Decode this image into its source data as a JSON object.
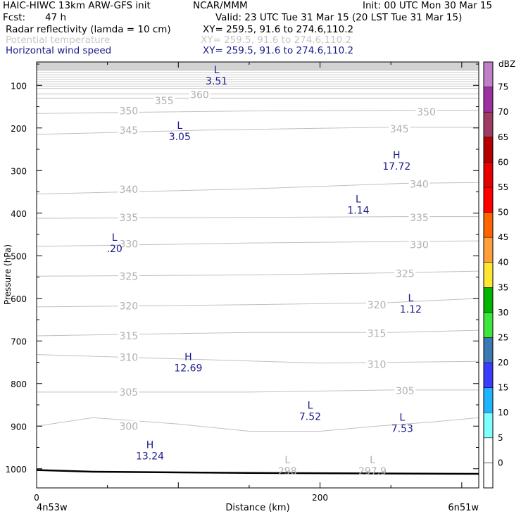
{
  "header": {
    "model": "HAIC-HIWC 13km ARW-GFS init",
    "org": "NCAR/MMM",
    "init": "Init: 00 UTC Mon 30 Mar 15",
    "fcst_label": "Fcst:",
    "fcst_value": "47 h",
    "valid": "Valid: 23 UTC Tue 31 Mar 15 (20 LST Tue 31 Mar 15)",
    "fields": [
      {
        "name": "Radar reflectivity (lamda = 10 cm)",
        "xy": "XY= 259.5, 91.6 to 274.6,110.2",
        "color": "#000000"
      },
      {
        "name": "Potential temperature",
        "xy": "XY= 259.5, 91.6 to 274.6,110.2",
        "color": "#c8c8c8"
      },
      {
        "name": "Horizontal wind speed",
        "xy": "XY= 259.5, 91.6 to 274.6,110.2",
        "color": "#1a1a8c"
      }
    ]
  },
  "chart_data": {
    "type": "cross-section",
    "xlabel": "Distance (km)",
    "ylabel": "Pressure (hPa)",
    "xlim": [
      0,
      312
    ],
    "ylim": [
      1045,
      45
    ],
    "x_ticks": [
      0,
      200
    ],
    "y_ticks": [
      100,
      200,
      300,
      400,
      500,
      600,
      700,
      800,
      900,
      1000
    ],
    "x_end_labels": [
      "4n53w",
      "6n51w"
    ],
    "colorbar": {
      "unit": "dBZ",
      "levels": [
        -5,
        0,
        5,
        10,
        15,
        20,
        25,
        30,
        35,
        40,
        45,
        50,
        55,
        60,
        65,
        70,
        75,
        80
      ],
      "labels": [
        "0",
        "5",
        "10",
        "15",
        "20",
        "25",
        "30",
        "35",
        "40",
        "45",
        "50",
        "55",
        "60",
        "65",
        "70",
        "75"
      ],
      "colors": [
        "#ffffff",
        "#ffffff",
        "#80ffff",
        "#20b4ff",
        "#3c3cff",
        "#3c78b4",
        "#3ce63c",
        "#00b400",
        "#ffe632",
        "#ffa03c",
        "#ff6400",
        "#ff0000",
        "#e60000",
        "#b40000",
        "#a03c64",
        "#9b32a0",
        "#c080c8"
      ]
    },
    "theta_contours": [
      {
        "value": 355,
        "points": [
          [
            0,
            130
          ],
          [
            312,
            130
          ]
        ],
        "labels": [
          [
            90,
            136
          ]
        ]
      },
      {
        "value": 360,
        "points": [
          [
            0,
            120
          ],
          [
            312,
            120
          ]
        ],
        "labels": [
          [
            115,
            122
          ]
        ]
      },
      {
        "value": 350,
        "points": [
          [
            0,
            166
          ],
          [
            150,
            160
          ],
          [
            312,
            158
          ]
        ],
        "labels": [
          [
            65,
            160
          ],
          [
            275,
            162
          ]
        ]
      },
      {
        "value": 345,
        "points": [
          [
            0,
            215
          ],
          [
            120,
            205
          ],
          [
            250,
            198
          ],
          [
            312,
            198
          ]
        ],
        "labels": [
          [
            65,
            205
          ],
          [
            256,
            202
          ]
        ]
      },
      {
        "value": 340,
        "points": [
          [
            0,
            355
          ],
          [
            150,
            343
          ],
          [
            260,
            330
          ],
          [
            312,
            328
          ]
        ],
        "labels": [
          [
            65,
            344
          ],
          [
            270,
            332
          ]
        ]
      },
      {
        "value": 335,
        "points": [
          [
            0,
            412
          ],
          [
            150,
            410
          ],
          [
            260,
            408
          ],
          [
            312,
            408
          ]
        ],
        "labels": [
          [
            65,
            410
          ],
          [
            270,
            410
          ]
        ]
      },
      {
        "value": 330,
        "points": [
          [
            0,
            478
          ],
          [
            60,
            475
          ],
          [
            150,
            470
          ],
          [
            312,
            465
          ]
        ],
        "labels": [
          [
            65,
            472
          ],
          [
            270,
            474
          ]
        ]
      },
      {
        "value": 325,
        "points": [
          [
            0,
            548
          ],
          [
            150,
            545
          ],
          [
            250,
            540
          ],
          [
            312,
            536
          ]
        ],
        "labels": [
          [
            65,
            548
          ],
          [
            260,
            542
          ]
        ]
      },
      {
        "value": 320,
        "points": [
          [
            0,
            620
          ],
          [
            150,
            615
          ],
          [
            250,
            610
          ],
          [
            312,
            600
          ]
        ],
        "labels": [
          [
            65,
            618
          ],
          [
            240,
            615
          ]
        ]
      },
      {
        "value": 315,
        "points": [
          [
            0,
            688
          ],
          [
            150,
            680
          ],
          [
            250,
            680
          ],
          [
            312,
            675
          ]
        ],
        "labels": [
          [
            65,
            688
          ],
          [
            240,
            682
          ]
        ]
      },
      {
        "value": 310,
        "points": [
          [
            0,
            732
          ],
          [
            80,
            740
          ],
          [
            200,
            752
          ],
          [
            312,
            748
          ]
        ],
        "labels": [
          [
            65,
            738
          ],
          [
            240,
            755
          ]
        ]
      },
      {
        "value": 305,
        "points": [
          [
            0,
            820
          ],
          [
            150,
            820
          ],
          [
            250,
            815
          ],
          [
            312,
            815
          ]
        ],
        "labels": [
          [
            65,
            820
          ],
          [
            260,
            817
          ]
        ]
      },
      {
        "value": 300,
        "points": [
          [
            0,
            900
          ],
          [
            40,
            880
          ],
          [
            100,
            895
          ],
          [
            150,
            912
          ],
          [
            200,
            912
          ],
          [
            240,
            900
          ],
          [
            280,
            890
          ],
          [
            312,
            880
          ]
        ],
        "labels": [
          [
            65,
            900
          ]
        ]
      }
    ],
    "ground_line": {
      "points": [
        [
          0,
          1003
        ],
        [
          40,
          1007
        ],
        [
          150,
          1010
        ],
        [
          312,
          1012
        ]
      ]
    },
    "wind_extrema": [
      {
        "type": "L",
        "value": "3.51",
        "x": 127,
        "p": 85
      },
      {
        "type": "L",
        "value": "3.05",
        "x": 101,
        "p": 215
      },
      {
        "type": "H",
        "value": "17.72",
        "x": 254,
        "p": 285
      },
      {
        "type": "L",
        "value": "1.14",
        "x": 227,
        "p": 388
      },
      {
        "type": "L",
        "value": ".20",
        "x": 55,
        "p": 478
      },
      {
        "type": "L",
        "value": "1.12",
        "x": 264,
        "p": 620
      },
      {
        "type": "H",
        "value": "12.69",
        "x": 107,
        "p": 758
      },
      {
        "type": "L",
        "value": "7.52",
        "x": 193,
        "p": 872
      },
      {
        "type": "L",
        "value": "7.53",
        "x": 258,
        "p": 900
      },
      {
        "type": "H",
        "value": "13.24",
        "x": 80,
        "p": 965
      }
    ],
    "theta_extrema": [
      {
        "type": "L",
        "value": "298",
        "x": 177,
        "p": 1000
      },
      {
        "type": "L",
        "value": "297.9",
        "x": 237,
        "p": 1000
      }
    ]
  }
}
